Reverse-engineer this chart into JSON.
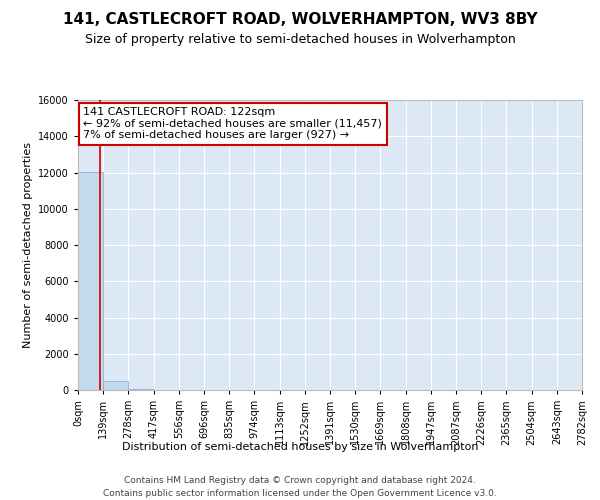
{
  "title": "141, CASTLECROFT ROAD, WOLVERHAMPTON, WV3 8BY",
  "subtitle": "Size of property relative to semi-detached houses in Wolverhampton",
  "xlabel_dist": "Distribution of semi-detached houses by size in Wolverhampton",
  "ylabel": "Number of semi-detached properties",
  "footer_line1": "Contains HM Land Registry data © Crown copyright and database right 2024.",
  "footer_line2": "Contains public sector information licensed under the Open Government Licence v3.0.",
  "annotation_line1": "141 CASTLECROFT ROAD: 122sqm",
  "annotation_line2": "← 92% of semi-detached houses are smaller (11,457)",
  "annotation_line3": "7% of semi-detached houses are larger (927) →",
  "property_size": 122,
  "bin_edges": [
    0,
    139,
    278,
    417,
    556,
    696,
    835,
    974,
    1113,
    1252,
    1391,
    1530,
    1669,
    1808,
    1947,
    2087,
    2226,
    2365,
    2504,
    2643,
    2782
  ],
  "bar_heights": [
    12050,
    490,
    40,
    15,
    8,
    5,
    3,
    2,
    2,
    1,
    1,
    1,
    1,
    0,
    0,
    0,
    0,
    0,
    0,
    0
  ],
  "bar_color": "#c5d9ee",
  "bar_edge_color": "#7aaed4",
  "red_line_color": "#cc0000",
  "annotation_box_color": "#cc0000",
  "background_color": "#dce9f5",
  "ylim": [
    0,
    16000
  ],
  "yticks": [
    0,
    2000,
    4000,
    6000,
    8000,
    10000,
    12000,
    14000,
    16000
  ],
  "tick_labels": [
    "0sqm",
    "139sqm",
    "278sqm",
    "417sqm",
    "556sqm",
    "696sqm",
    "835sqm",
    "974sqm",
    "1113sqm",
    "1252sqm",
    "1391sqm",
    "1530sqm",
    "1669sqm",
    "1808sqm",
    "1947sqm",
    "2087sqm",
    "2226sqm",
    "2365sqm",
    "2504sqm",
    "2643sqm",
    "2782sqm"
  ],
  "title_fontsize": 11,
  "subtitle_fontsize": 9,
  "ylabel_fontsize": 8,
  "tick_fontsize": 7,
  "annotation_fontsize": 8,
  "xlabel_fontsize": 8,
  "footer_fontsize": 6.5
}
